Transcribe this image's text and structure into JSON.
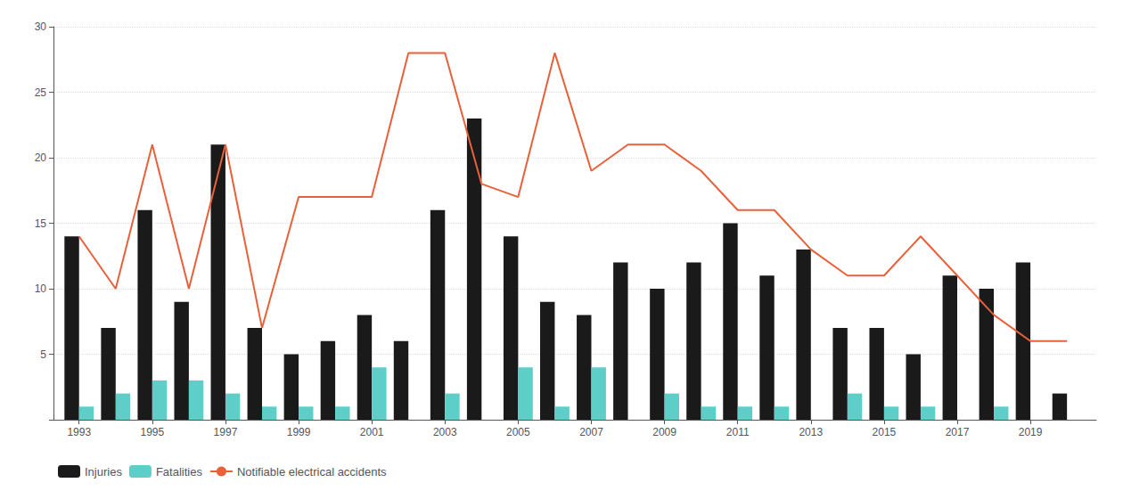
{
  "chart_data": {
    "type": "bar",
    "x": [
      1993,
      1994,
      1995,
      1996,
      1997,
      1998,
      1999,
      2000,
      2001,
      2002,
      2003,
      2004,
      2005,
      2006,
      2007,
      2008,
      2009,
      2010,
      2011,
      2012,
      2013,
      2014,
      2015,
      2016,
      2017,
      2018,
      2019,
      2020
    ],
    "series": [
      {
        "name": "Injuries",
        "color": "#1a1a1a",
        "values": [
          14,
          7,
          16,
          9,
          21,
          7,
          5,
          6,
          8,
          6,
          16,
          23,
          14,
          9,
          8,
          12,
          10,
          12,
          15,
          11,
          13,
          7,
          7,
          5,
          11,
          10,
          12,
          2
        ]
      },
      {
        "name": "Fatalities",
        "color": "#5dcec8",
        "values": [
          1,
          2,
          3,
          3,
          2,
          1,
          1,
          1,
          4,
          0,
          2,
          0,
          4,
          1,
          4,
          0,
          2,
          1,
          1,
          1,
          0,
          2,
          1,
          1,
          0,
          1,
          0,
          0
        ]
      },
      {
        "name": "Notifiable electrical accidents",
        "type": "line",
        "color": "#e8613a",
        "values": [
          14,
          10,
          21,
          10,
          21,
          7,
          17,
          17,
          17,
          28,
          28,
          18,
          17,
          28,
          19,
          21,
          21,
          19,
          16,
          16,
          13,
          11,
          11,
          14,
          11,
          8,
          6,
          6
        ]
      }
    ],
    "xlim": [
      1992.3,
      2020.8
    ],
    "xticks": [
      1993,
      1995,
      1997,
      1999,
      2001,
      2003,
      2005,
      2007,
      2009,
      2011,
      2013,
      2015,
      2017,
      2019
    ],
    "ylim": [
      0,
      30
    ],
    "yticks": [
      5,
      10,
      15,
      20,
      25,
      30
    ],
    "grid": true,
    "legend": "lower left"
  }
}
